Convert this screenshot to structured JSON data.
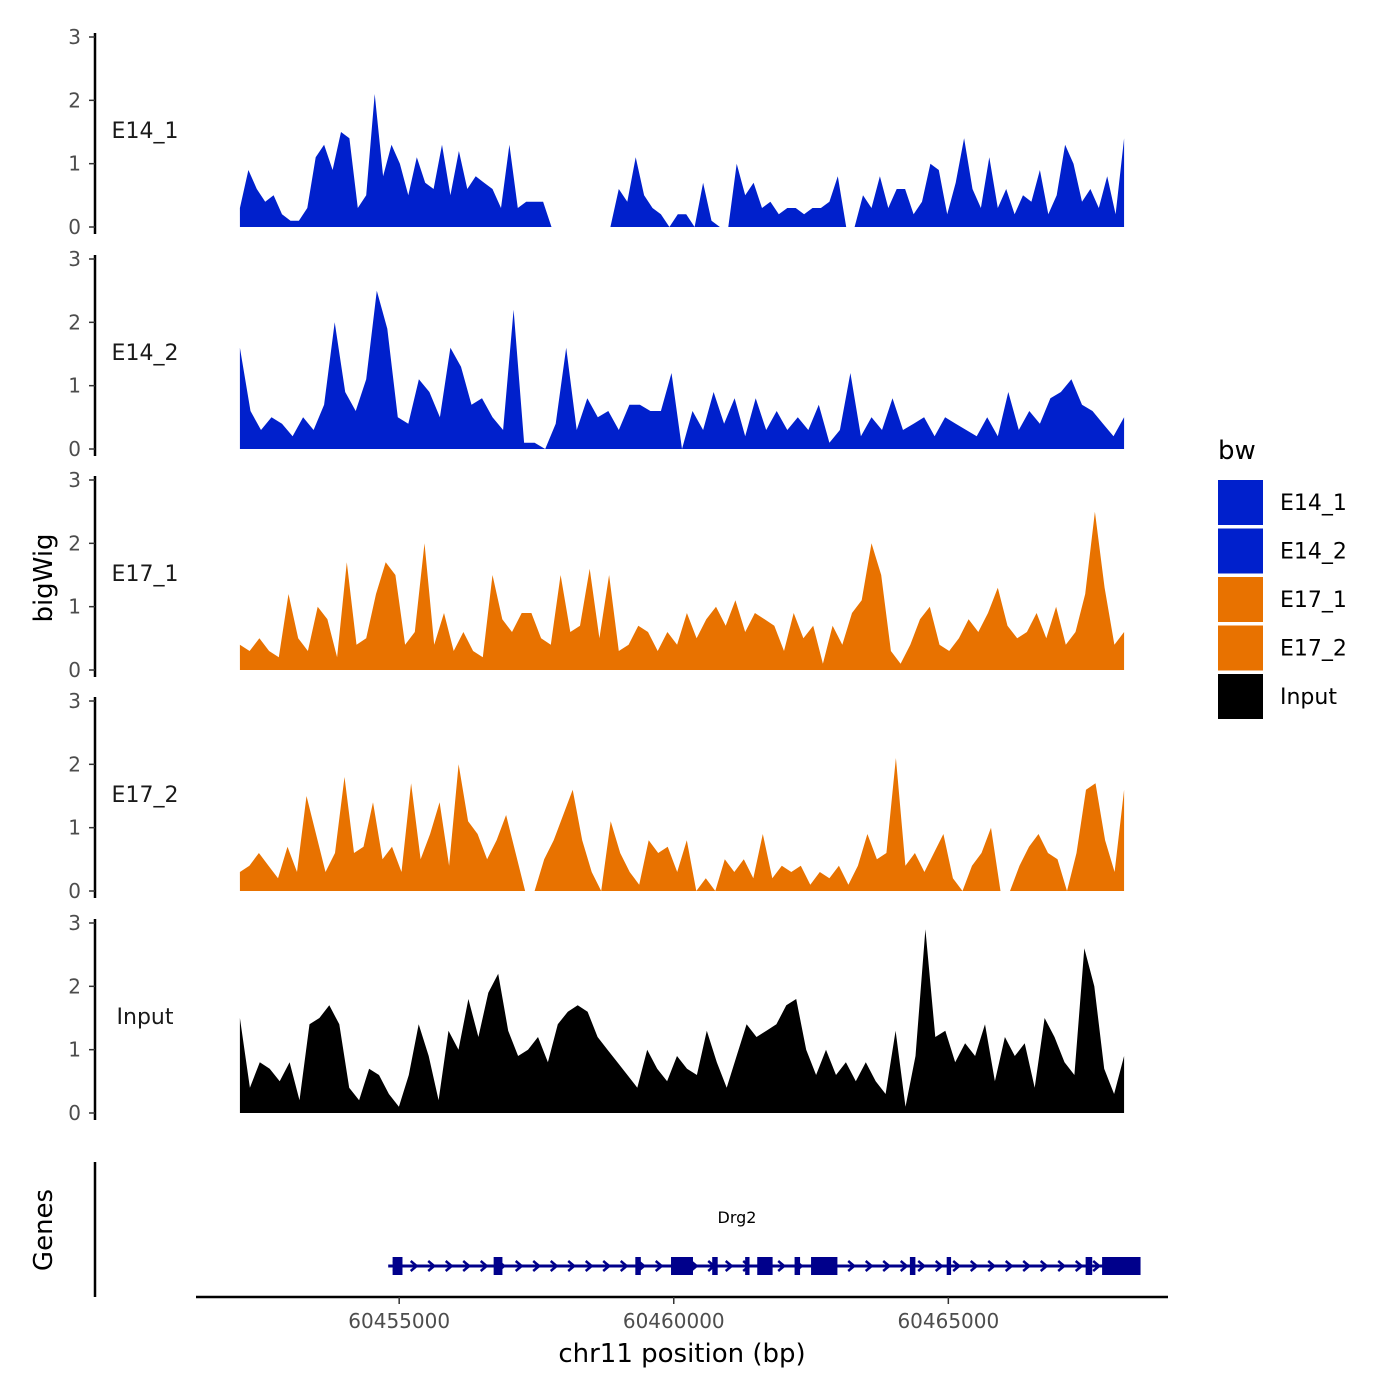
{
  "chart_data": {
    "type": "area",
    "description_title": "",
    "xlabel": "chr11 position (bp)",
    "ylabel": "bigWig",
    "genes_label": "Genes",
    "xlim": [
      60451300,
      60469000
    ],
    "data_range": [
      60452100,
      60468200
    ],
    "x_ticks": [
      60455000,
      60460000,
      60465000
    ],
    "x_tick_labels": [
      "60455000",
      "60460000",
      "60465000"
    ],
    "y_ticks": [
      0,
      1,
      2,
      3
    ],
    "y_tick_labels": [
      "0",
      "1",
      "2",
      "3"
    ],
    "ylim": [
      0,
      3
    ],
    "legend": {
      "title": "bw",
      "entries": [
        {
          "label": "E14_1",
          "color": "#0020CC"
        },
        {
          "label": "E14_2",
          "color": "#0020CC"
        },
        {
          "label": "E17_1",
          "color": "#E87200"
        },
        {
          "label": "E17_2",
          "color": "#E87200"
        },
        {
          "label": "Input",
          "color": "#000000"
        }
      ]
    },
    "series": [
      {
        "name": "E14_1",
        "color": "#0020CC",
        "values": [
          0.3,
          0.9,
          0.6,
          0.4,
          0.5,
          0.2,
          0.1,
          0.1,
          0.3,
          1.1,
          1.3,
          0.9,
          1.5,
          1.4,
          0.3,
          0.5,
          2.1,
          0.8,
          1.3,
          1.0,
          0.5,
          1.1,
          0.7,
          0.6,
          1.3,
          0.5,
          1.2,
          0.6,
          0.8,
          0.7,
          0.6,
          0.3,
          1.3,
          0.3,
          0.4,
          0.4,
          0.4,
          0.0,
          0.0,
          0.0,
          0.0,
          0.0,
          0.0,
          0.0,
          0.0,
          0.6,
          0.4,
          1.1,
          0.5,
          0.3,
          0.2,
          0.0,
          0.2,
          0.2,
          0.0,
          0.7,
          0.1,
          0.0,
          0.0,
          1.0,
          0.5,
          0.7,
          0.3,
          0.4,
          0.2,
          0.3,
          0.3,
          0.2,
          0.3,
          0.3,
          0.4,
          0.8,
          0.0,
          0.0,
          0.5,
          0.3,
          0.8,
          0.3,
          0.6,
          0.6,
          0.2,
          0.4,
          1.0,
          0.9,
          0.2,
          0.7,
          1.4,
          0.6,
          0.3,
          1.1,
          0.3,
          0.6,
          0.2,
          0.5,
          0.4,
          0.9,
          0.2,
          0.5,
          1.3,
          1.0,
          0.4,
          0.6,
          0.3,
          0.8,
          0.2,
          1.4
        ],
        "value_notes": "approximate, sampled evenly across data_range, 0 = gap"
      },
      {
        "name": "E14_2",
        "color": "#0020CC",
        "values": [
          1.6,
          0.6,
          0.3,
          0.5,
          0.4,
          0.2,
          0.5,
          0.3,
          0.7,
          2.0,
          0.9,
          0.6,
          1.1,
          2.5,
          1.9,
          0.5,
          0.4,
          1.1,
          0.9,
          0.5,
          1.6,
          1.3,
          0.7,
          0.8,
          0.5,
          0.3,
          2.2,
          0.1,
          0.1,
          0.0,
          0.4,
          1.6,
          0.3,
          0.8,
          0.5,
          0.6,
          0.3,
          0.7,
          0.7,
          0.6,
          0.6,
          1.2,
          0.0,
          0.6,
          0.3,
          0.9,
          0.4,
          0.8,
          0.2,
          0.8,
          0.3,
          0.6,
          0.3,
          0.5,
          0.3,
          0.7,
          0.1,
          0.3,
          1.2,
          0.2,
          0.5,
          0.3,
          0.8,
          0.3,
          0.4,
          0.5,
          0.2,
          0.5,
          0.4,
          0.3,
          0.2,
          0.5,
          0.2,
          0.9,
          0.3,
          0.6,
          0.4,
          0.8,
          0.9,
          1.1,
          0.7,
          0.6,
          0.4,
          0.2,
          0.5
        ],
        "value_notes": "approximate"
      },
      {
        "name": "E17_1",
        "color": "#E87200",
        "values": [
          0.4,
          0.3,
          0.5,
          0.3,
          0.2,
          1.2,
          0.5,
          0.3,
          1.0,
          0.8,
          0.2,
          1.7,
          0.4,
          0.5,
          1.2,
          1.7,
          1.5,
          0.4,
          0.6,
          2.0,
          0.4,
          0.9,
          0.3,
          0.6,
          0.3,
          0.2,
          1.5,
          0.8,
          0.6,
          0.9,
          0.9,
          0.5,
          0.4,
          1.5,
          0.6,
          0.7,
          1.6,
          0.5,
          1.5,
          0.3,
          0.4,
          0.7,
          0.6,
          0.3,
          0.6,
          0.4,
          0.9,
          0.5,
          0.8,
          1.0,
          0.7,
          1.1,
          0.6,
          0.9,
          0.8,
          0.7,
          0.3,
          0.9,
          0.5,
          0.7,
          0.1,
          0.7,
          0.4,
          0.9,
          1.1,
          2.0,
          1.5,
          0.3,
          0.1,
          0.4,
          0.8,
          1.0,
          0.4,
          0.3,
          0.5,
          0.8,
          0.6,
          0.9,
          1.3,
          0.7,
          0.5,
          0.6,
          0.9,
          0.5,
          1.0,
          0.4,
          0.6,
          1.2,
          2.5,
          1.3,
          0.4,
          0.6
        ],
        "value_notes": "approximate"
      },
      {
        "name": "E17_2",
        "color": "#E87200",
        "values": [
          0.3,
          0.4,
          0.6,
          0.4,
          0.2,
          0.7,
          0.3,
          1.5,
          0.9,
          0.3,
          0.6,
          1.8,
          0.6,
          0.7,
          1.4,
          0.5,
          0.7,
          0.3,
          1.7,
          0.5,
          0.9,
          1.4,
          0.4,
          2.0,
          1.1,
          0.9,
          0.5,
          0.8,
          1.2,
          0.6,
          0.0,
          0.0,
          0.5,
          0.8,
          1.2,
          1.6,
          0.8,
          0.3,
          0.0,
          1.1,
          0.6,
          0.3,
          0.1,
          0.8,
          0.6,
          0.7,
          0.3,
          0.8,
          0.0,
          0.2,
          0.0,
          0.5,
          0.3,
          0.5,
          0.2,
          0.9,
          0.2,
          0.4,
          0.3,
          0.4,
          0.1,
          0.3,
          0.2,
          0.4,
          0.1,
          0.4,
          0.9,
          0.5,
          0.6,
          2.1,
          0.4,
          0.6,
          0.3,
          0.6,
          0.9,
          0.2,
          0.0,
          0.4,
          0.6,
          1.0,
          0.0,
          0.0,
          0.4,
          0.7,
          0.9,
          0.6,
          0.5,
          0.0,
          0.6,
          1.6,
          1.7,
          0.8,
          0.3,
          1.6
        ],
        "value_notes": "approximate"
      },
      {
        "name": "Input",
        "color": "#000000",
        "values": [
          1.5,
          0.4,
          0.8,
          0.7,
          0.5,
          0.8,
          0.2,
          1.4,
          1.5,
          1.7,
          1.4,
          0.4,
          0.2,
          0.7,
          0.6,
          0.3,
          0.1,
          0.6,
          1.4,
          0.9,
          0.2,
          1.3,
          1.0,
          1.8,
          1.2,
          1.9,
          2.2,
          1.3,
          0.9,
          1.0,
          1.2,
          0.8,
          1.4,
          1.6,
          1.7,
          1.6,
          1.2,
          1.0,
          0.8,
          0.6,
          0.4,
          1.0,
          0.7,
          0.5,
          0.9,
          0.7,
          0.6,
          1.3,
          0.8,
          0.4,
          0.9,
          1.4,
          1.2,
          1.3,
          1.4,
          1.7,
          1.8,
          1.0,
          0.6,
          1.0,
          0.6,
          0.8,
          0.5,
          0.8,
          0.5,
          0.3,
          1.3,
          0.1,
          0.9,
          2.9,
          1.2,
          1.3,
          0.8,
          1.1,
          0.9,
          1.4,
          0.5,
          1.2,
          0.9,
          1.1,
          0.4,
          1.5,
          1.2,
          0.8,
          0.6,
          2.6,
          2.0,
          0.7,
          0.3,
          0.9
        ],
        "value_notes": "approximate"
      }
    ],
    "genes": [
      {
        "name": "Drg2",
        "color": "#00008B",
        "strand": "+",
        "start": 60454800,
        "end": 60468200,
        "exons": [
          {
            "start": 60454880,
            "end": 60455060
          },
          {
            "start": 60456720,
            "end": 60456880
          },
          {
            "start": 60459300,
            "end": 60459400
          },
          {
            "start": 60459950,
            "end": 60460350
          },
          {
            "start": 60460700,
            "end": 60460800
          },
          {
            "start": 60461300,
            "end": 60461380
          },
          {
            "start": 60461520,
            "end": 60461800
          },
          {
            "start": 60462200,
            "end": 60462300
          },
          {
            "start": 60462500,
            "end": 60462980
          },
          {
            "start": 60464300,
            "end": 60464400
          },
          {
            "start": 60464970,
            "end": 60465050
          },
          {
            "start": 60467500,
            "end": 60467620
          },
          {
            "start": 60467800,
            "end": 60468500
          }
        ]
      }
    ]
  }
}
